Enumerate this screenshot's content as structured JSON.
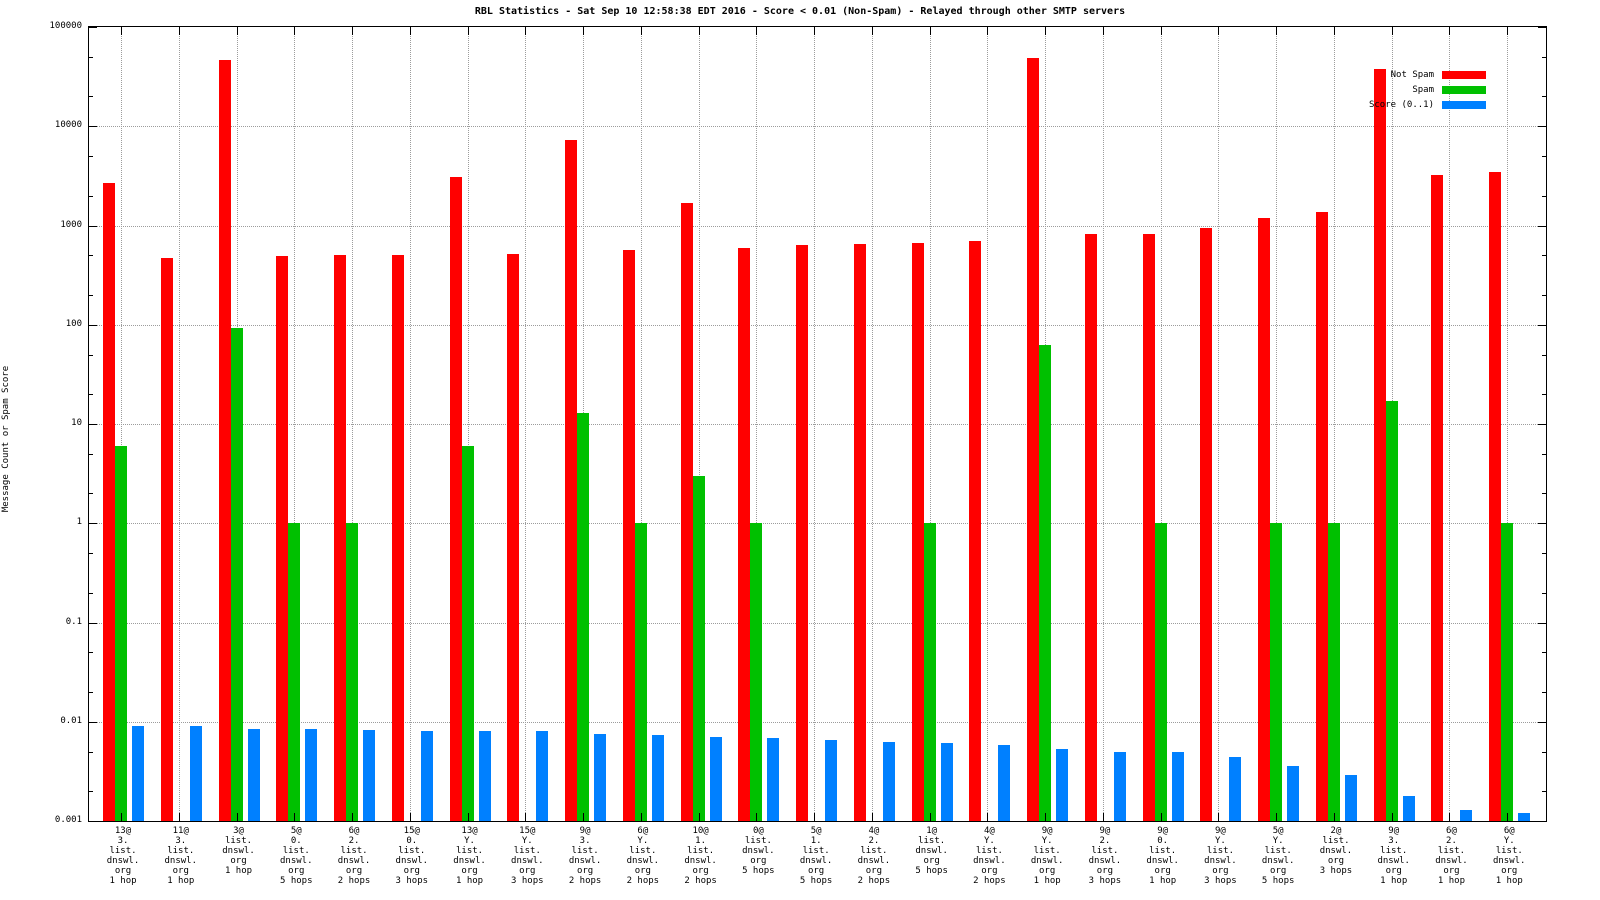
{
  "chart_data": {
    "type": "bar",
    "title": "RBL Statistics - Sat Sep 10 12:58:38 EDT 2016 - Score < 0.01 (Non-Spam) - Relayed through other SMTP servers",
    "ylabel": "Message Count or Spam Score",
    "xlabel": "",
    "scale": "log",
    "ylim": [
      0.001,
      100000
    ],
    "grid": "on",
    "legend_position": "top-right",
    "y_ticks": [
      "100000",
      "10000",
      "1000",
      "100",
      "10",
      "1",
      "0.1",
      "0.01",
      "0.001"
    ],
    "series": [
      {
        "name": "Not Spam",
        "color": "#ff0000"
      },
      {
        "name": "Spam",
        "color": "#00c000"
      },
      {
        "name": "Score (0..1)",
        "color": "#0080ff"
      }
    ],
    "groups": [
      {
        "label_lines": [
          "13@",
          "3.",
          "list.",
          "dnswl.",
          "org",
          "1 hop"
        ],
        "not_spam": 2700,
        "spam": 6,
        "score": 0.009
      },
      {
        "label_lines": [
          "11@",
          "3.",
          "list.",
          "dnswl.",
          "org",
          "1 hop"
        ],
        "not_spam": 470,
        "spam": null,
        "score": 0.009
      },
      {
        "label_lines": [
          "3@",
          "list.",
          "dnswl.",
          "org",
          "1 hop"
        ],
        "not_spam": 46000,
        "spam": 92,
        "score": 0.0085
      },
      {
        "label_lines": [
          "5@",
          "0.",
          "list.",
          "dnswl.",
          "org",
          "5 hops"
        ],
        "not_spam": 490,
        "spam": 1,
        "score": 0.0085
      },
      {
        "label_lines": [
          "6@",
          "2.",
          "list.",
          "dnswl.",
          "org",
          "2 hops"
        ],
        "not_spam": 500,
        "spam": 1,
        "score": 0.0082
      },
      {
        "label_lines": [
          "15@",
          "0.",
          "list.",
          "dnswl.",
          "org",
          "3 hops"
        ],
        "not_spam": 500,
        "spam": null,
        "score": 0.0081
      },
      {
        "label_lines": [
          "13@",
          "Y.",
          "list.",
          "dnswl.",
          "org",
          "1 hop"
        ],
        "not_spam": 3100,
        "spam": 6,
        "score": 0.008
      },
      {
        "label_lines": [
          "15@",
          "Y.",
          "list.",
          "dnswl.",
          "org",
          "3 hops"
        ],
        "not_spam": 520,
        "spam": null,
        "score": 0.008
      },
      {
        "label_lines": [
          "9@",
          "3.",
          "list.",
          "dnswl.",
          "org",
          "2 hops"
        ],
        "not_spam": 7200,
        "spam": 13,
        "score": 0.0075
      },
      {
        "label_lines": [
          "6@",
          "Y.",
          "list.",
          "dnswl.",
          "org",
          "2 hops"
        ],
        "not_spam": 570,
        "spam": 1,
        "score": 0.0073
      },
      {
        "label_lines": [
          "10@",
          "1.",
          "list.",
          "dnswl.",
          "org",
          "2 hops"
        ],
        "not_spam": 1700,
        "spam": 3,
        "score": 0.0071
      },
      {
        "label_lines": [
          "0@",
          "list.",
          "dnswl.",
          "org",
          "5 hops"
        ],
        "not_spam": 600,
        "spam": 1,
        "score": 0.0068
      },
      {
        "label_lines": [
          "5@",
          "1.",
          "list.",
          "dnswl.",
          "org",
          "5 hops"
        ],
        "not_spam": 630,
        "spam": null,
        "score": 0.0065
      },
      {
        "label_lines": [
          "4@",
          "2.",
          "list.",
          "dnswl.",
          "org",
          "2 hops"
        ],
        "not_spam": 650,
        "spam": null,
        "score": 0.0063
      },
      {
        "label_lines": [
          "1@",
          "list.",
          "dnswl.",
          "org",
          "5 hops"
        ],
        "not_spam": 660,
        "spam": 1,
        "score": 0.0061
      },
      {
        "label_lines": [
          "4@",
          "Y.",
          "list.",
          "dnswl.",
          "org",
          "2 hops"
        ],
        "not_spam": 700,
        "spam": null,
        "score": 0.0058
      },
      {
        "label_lines": [
          "9@",
          "Y.",
          "list.",
          "dnswl.",
          "org",
          "1 hop"
        ],
        "not_spam": 49000,
        "spam": 62,
        "score": 0.0053
      },
      {
        "label_lines": [
          "9@",
          "2.",
          "list.",
          "dnswl.",
          "org",
          "3 hops"
        ],
        "not_spam": 820,
        "spam": null,
        "score": 0.005
      },
      {
        "label_lines": [
          "9@",
          "0.",
          "list.",
          "dnswl.",
          "org",
          "1 hop"
        ],
        "not_spam": 820,
        "spam": 1,
        "score": 0.005
      },
      {
        "label_lines": [
          "9@",
          "Y.",
          "list.",
          "dnswl.",
          "org",
          "3 hops"
        ],
        "not_spam": 940,
        "spam": null,
        "score": 0.0044
      },
      {
        "label_lines": [
          "5@",
          "Y.",
          "list.",
          "dnswl.",
          "org",
          "5 hops"
        ],
        "not_spam": 1180,
        "spam": 1,
        "score": 0.0036
      },
      {
        "label_lines": [
          "2@",
          "list.",
          "dnswl.",
          "org",
          "3 hops"
        ],
        "not_spam": 1380,
        "spam": 1,
        "score": 0.0029
      },
      {
        "label_lines": [
          "9@",
          "3.",
          "list.",
          "dnswl.",
          "org",
          "1 hop"
        ],
        "not_spam": 38000,
        "spam": 17,
        "score": 0.0018
      },
      {
        "label_lines": [
          "6@",
          "2.",
          "list.",
          "dnswl.",
          "org",
          "1 hop"
        ],
        "not_spam": 3200,
        "spam": null,
        "score": 0.0013
      },
      {
        "label_lines": [
          "6@",
          "Y.",
          "list.",
          "dnswl.",
          "org",
          "1 hop"
        ],
        "not_spam": 3500,
        "spam": 1,
        "score": 0.0012
      }
    ]
  },
  "colors": {
    "not_spam": "#ff0000",
    "spam": "#00c000",
    "score": "#0080ff",
    "grid": "#9c9c9c",
    "axis": "#000000",
    "background": "#ffffff"
  }
}
